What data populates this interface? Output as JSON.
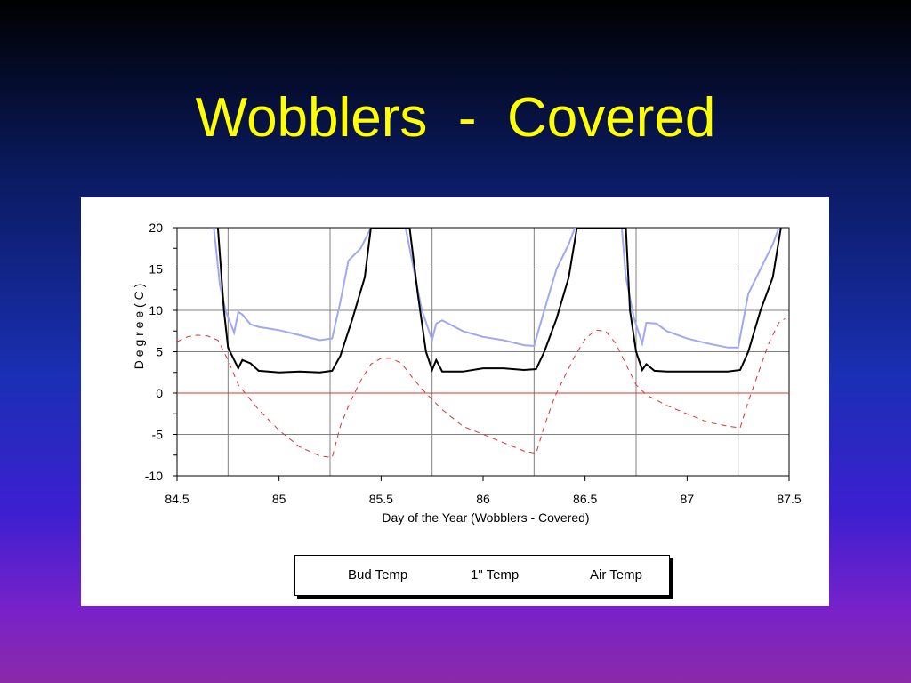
{
  "slide": {
    "title": "Wobblers  -  Covered"
  },
  "chart_data": {
    "type": "line",
    "title": "",
    "xlabel": "Day of the Year (Wobblers  -  Covered)",
    "ylabel": "D e g r e e   ( C )",
    "xlim": [
      84.5,
      87.5
    ],
    "ylim": [
      -10,
      20
    ],
    "x_ticks": [
      "84.5",
      "85",
      "85.5",
      "86",
      "86.5",
      "87",
      "87.5"
    ],
    "y_ticks": [
      "20",
      "15",
      "10",
      "5",
      "0",
      "-5",
      "-10"
    ],
    "grid": true,
    "legend_position": "bottom",
    "series": [
      {
        "name": "Bud Temp",
        "color": "#a0a8f0",
        "style": "solid",
        "points": [
          [
            84.68,
            20
          ],
          [
            84.71,
            13
          ],
          [
            84.74,
            9.8
          ],
          [
            84.78,
            7.3
          ],
          [
            84.8,
            9.8
          ],
          [
            84.82,
            9.5
          ],
          [
            84.86,
            8.3
          ],
          [
            84.9,
            8.0
          ],
          [
            85.0,
            7.6
          ],
          [
            85.1,
            7.0
          ],
          [
            85.2,
            6.4
          ],
          [
            85.26,
            6.6
          ],
          [
            85.3,
            11
          ],
          [
            85.34,
            16
          ],
          [
            85.4,
            17.5
          ],
          [
            85.45,
            20
          ],
          [
            85.62,
            20
          ],
          [
            85.66,
            15
          ],
          [
            85.7,
            10
          ],
          [
            85.75,
            6.4
          ],
          [
            85.77,
            8.4
          ],
          [
            85.8,
            8.8
          ],
          [
            85.9,
            7.5
          ],
          [
            86.0,
            6.8
          ],
          [
            86.1,
            6.4
          ],
          [
            86.2,
            5.8
          ],
          [
            86.25,
            5.7
          ],
          [
            86.3,
            10
          ],
          [
            86.36,
            15
          ],
          [
            86.42,
            18
          ],
          [
            86.45,
            20
          ],
          [
            86.68,
            20
          ],
          [
            86.7,
            14
          ],
          [
            86.74,
            9
          ],
          [
            86.78,
            6.0
          ],
          [
            86.8,
            8.5
          ],
          [
            86.85,
            8.4
          ],
          [
            86.9,
            7.5
          ],
          [
            87.0,
            6.6
          ],
          [
            87.1,
            6.0
          ],
          [
            87.2,
            5.5
          ],
          [
            87.25,
            5.5
          ],
          [
            87.3,
            12
          ],
          [
            87.36,
            15
          ],
          [
            87.42,
            18
          ],
          [
            87.45,
            20
          ]
        ]
      },
      {
        "name": "1\" Temp",
        "color": "#000000",
        "style": "solid",
        "points": [
          [
            84.7,
            20
          ],
          [
            84.73,
            10
          ],
          [
            84.75,
            5.5
          ],
          [
            84.8,
            3.0
          ],
          [
            84.82,
            4.0
          ],
          [
            84.86,
            3.6
          ],
          [
            84.9,
            2.7
          ],
          [
            85.0,
            2.5
          ],
          [
            85.1,
            2.6
          ],
          [
            85.2,
            2.5
          ],
          [
            85.26,
            2.7
          ],
          [
            85.3,
            4.5
          ],
          [
            85.36,
            9
          ],
          [
            85.42,
            14
          ],
          [
            85.45,
            20
          ],
          [
            85.64,
            20
          ],
          [
            85.68,
            12
          ],
          [
            85.72,
            5
          ],
          [
            85.75,
            2.8
          ],
          [
            85.77,
            4.0
          ],
          [
            85.8,
            2.6
          ],
          [
            85.9,
            2.6
          ],
          [
            86.0,
            3.0
          ],
          [
            86.1,
            3.0
          ],
          [
            86.2,
            2.8
          ],
          [
            86.26,
            2.9
          ],
          [
            86.3,
            5
          ],
          [
            86.36,
            9
          ],
          [
            86.42,
            14
          ],
          [
            86.46,
            20
          ],
          [
            86.7,
            20
          ],
          [
            86.72,
            10
          ],
          [
            86.75,
            5
          ],
          [
            86.78,
            2.8
          ],
          [
            86.8,
            3.5
          ],
          [
            86.84,
            2.7
          ],
          [
            86.9,
            2.6
          ],
          [
            87.0,
            2.6
          ],
          [
            87.1,
            2.6
          ],
          [
            87.2,
            2.6
          ],
          [
            87.26,
            2.8
          ],
          [
            87.3,
            5
          ],
          [
            87.36,
            10
          ],
          [
            87.42,
            14
          ],
          [
            87.46,
            20
          ]
        ]
      },
      {
        "name": "Air Temp",
        "color": "#e03030",
        "style": "dashed",
        "points": [
          [
            84.5,
            6.2
          ],
          [
            84.55,
            6.8
          ],
          [
            84.6,
            7.0
          ],
          [
            84.65,
            6.9
          ],
          [
            84.7,
            6.4
          ],
          [
            84.75,
            4.0
          ],
          [
            84.8,
            1.0
          ],
          [
            84.9,
            -2.0
          ],
          [
            85.0,
            -4.5
          ],
          [
            85.1,
            -6.5
          ],
          [
            85.2,
            -7.6
          ],
          [
            85.26,
            -7.8
          ],
          [
            85.3,
            -4.0
          ],
          [
            85.35,
            -1.0
          ],
          [
            85.4,
            1.5
          ],
          [
            85.45,
            3.5
          ],
          [
            85.5,
            4.2
          ],
          [
            85.55,
            4.2
          ],
          [
            85.6,
            3.6
          ],
          [
            85.65,
            2.0
          ],
          [
            85.7,
            0.5
          ],
          [
            85.8,
            -2.0
          ],
          [
            85.9,
            -4.0
          ],
          [
            86.0,
            -5.0
          ],
          [
            86.1,
            -6.0
          ],
          [
            86.2,
            -7.0
          ],
          [
            86.26,
            -7.3
          ],
          [
            86.3,
            -4.0
          ],
          [
            86.35,
            -0.5
          ],
          [
            86.4,
            2.0
          ],
          [
            86.45,
            4.5
          ],
          [
            86.5,
            6.5
          ],
          [
            86.55,
            7.6
          ],
          [
            86.6,
            7.5
          ],
          [
            86.65,
            6.0
          ],
          [
            86.7,
            3.5
          ],
          [
            86.75,
            1.0
          ],
          [
            86.8,
            -0.2
          ],
          [
            86.9,
            -1.5
          ],
          [
            87.0,
            -2.5
          ],
          [
            87.1,
            -3.5
          ],
          [
            87.2,
            -4.0
          ],
          [
            87.26,
            -4.2
          ],
          [
            87.3,
            -1.0
          ],
          [
            87.35,
            2.5
          ],
          [
            87.4,
            6.0
          ],
          [
            87.45,
            8.5
          ],
          [
            87.48,
            9.0
          ]
        ]
      }
    ]
  },
  "legend": {
    "bud_label": "Bud Temp",
    "one_inch_label": "1\" Temp",
    "air_label": "Air Temp"
  }
}
